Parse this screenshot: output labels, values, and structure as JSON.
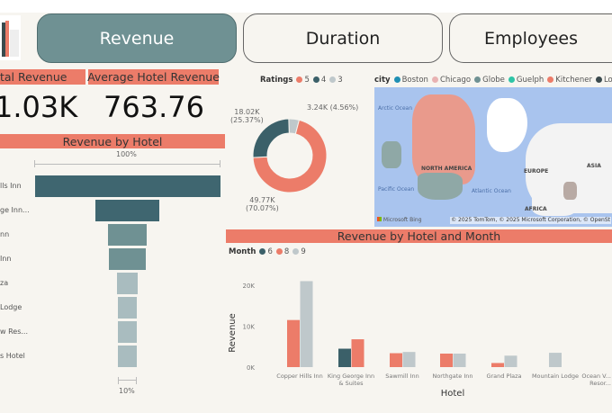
{
  "nav": {
    "tabs": [
      {
        "label": "Revenue",
        "active": true
      },
      {
        "label": "Duration",
        "active": false
      },
      {
        "label": "Employees",
        "active": false
      }
    ]
  },
  "kpis": [
    {
      "label": "tal Revenue",
      "value": "1.03K"
    },
    {
      "label": "Average Hotel Revenue",
      "value": "763.76"
    }
  ],
  "funnel": {
    "title": "Revenue by Hotel",
    "top_label": "100%",
    "bottom_label": "10%",
    "items": [
      {
        "label": "lls Inn",
        "pct": 100
      },
      {
        "label": "ge Inn...",
        "pct": 34
      },
      {
        "label": "nn",
        "pct": 21
      },
      {
        "label": " Inn",
        "pct": 20
      },
      {
        "label": "za",
        "pct": 11
      },
      {
        "label": "Lodge",
        "pct": 10
      },
      {
        "label": "w Res...",
        "pct": 10
      },
      {
        "label": "s Hotel",
        "pct": 10
      }
    ]
  },
  "donut": {
    "legend_title": "Ratings",
    "slices": [
      {
        "name": "5",
        "value": "49.77K",
        "pct": "(70.07%)",
        "frac": 0.7007,
        "color": "#ec7c69"
      },
      {
        "name": "4",
        "value": "18.02K",
        "pct": "(25.37%)",
        "frac": 0.2537,
        "color": "#3b6069"
      },
      {
        "name": "3",
        "value": "3.24K",
        "pct": "(4.56%)",
        "frac": 0.0456,
        "color": "#bfc8cb"
      }
    ]
  },
  "map": {
    "legend_title": "city",
    "cities": [
      {
        "name": "Boston",
        "color": "#1f8fb3"
      },
      {
        "name": "Chicago",
        "color": "#e8b2b2"
      },
      {
        "name": "Globe",
        "color": "#6f9193"
      },
      {
        "name": "Guelph",
        "color": "#2ec4a6"
      },
      {
        "name": "Kitchener",
        "color": "#ec7c69"
      },
      {
        "name": "London",
        "color": "#3b4a4d"
      }
    ],
    "labels": {
      "arctic": "Arctic Ocean",
      "pacific": "Pacific Ocean",
      "atlantic": "Atlantic Ocean",
      "na": "NORTH AMERICA",
      "europe": "EUROPE",
      "asia": "ASIA",
      "africa": "AFRICA"
    },
    "brand": "Microsoft Bing",
    "credit": "© 2025 TomTom, © 2025 Microsoft Corporation, © OpenSt"
  },
  "chart_data": {
    "type": "bar",
    "title": "Revenue by Hotel and Month",
    "legend_title": "Month",
    "xlabel": "Hotel",
    "ylabel": "Revenue",
    "ylim": [
      0,
      22000
    ],
    "yticks": [
      "0K",
      "10K",
      "20K"
    ],
    "categories": [
      "Copper Hills Inn",
      "King George Inn & Suites",
      "Sawmill Inn",
      "Northgate Inn",
      "Grand Plaza",
      "Mountain Lodge",
      "Ocean V... Resor..."
    ],
    "series": [
      {
        "name": "6",
        "color": "#3b6069",
        "values": [
          null,
          4500,
          null,
          null,
          null,
          null,
          null
        ]
      },
      {
        "name": "8",
        "color": "#ec7c69",
        "values": [
          11500,
          6800,
          3400,
          3300,
          1000,
          null,
          null
        ]
      },
      {
        "name": "9",
        "color": "#bfc8cb",
        "values": [
          21000,
          null,
          3700,
          3300,
          2800,
          3500,
          null
        ]
      }
    ]
  }
}
